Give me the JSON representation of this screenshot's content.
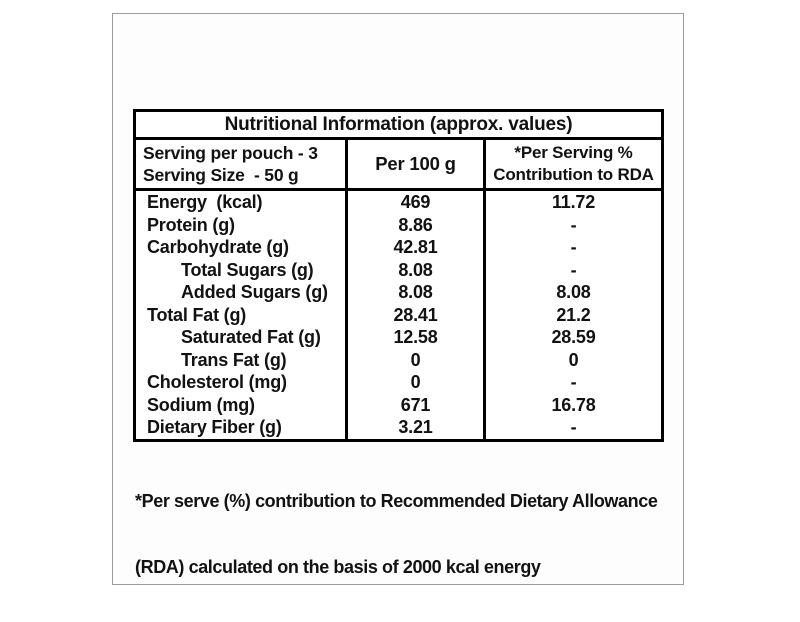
{
  "colors": {
    "table_border": "#000000",
    "frame_border": "#9c9c9c",
    "text": "#121212",
    "background": "#ffffff"
  },
  "table": {
    "title": "Nutritional Information (approx. values)",
    "header": {
      "serving_line1": "Serving per pouch - 3",
      "serving_line2": "Serving Size  - 50 g",
      "per_100g_label": "Per 100 g",
      "rda_line1": "*Per Serving %",
      "rda_line2": "Contribution to RDA"
    },
    "rows": [
      {
        "label": "Energy  (kcal)",
        "indent": false,
        "per_100g": "469",
        "rda": "11.72"
      },
      {
        "label": "Protein (g)",
        "indent": false,
        "per_100g": "8.86",
        "rda": "-"
      },
      {
        "label": "Carbohydrate (g)",
        "indent": false,
        "per_100g": "42.81",
        "rda": "-"
      },
      {
        "label": "Total Sugars (g)",
        "indent": true,
        "per_100g": "8.08",
        "rda": "-"
      },
      {
        "label": "Added Sugars (g)",
        "indent": true,
        "per_100g": "8.08",
        "rda": "8.08"
      },
      {
        "label": "Total Fat (g)",
        "indent": false,
        "per_100g": "28.41",
        "rda": "21.2"
      },
      {
        "label": "Saturated Fat (g)",
        "indent": true,
        "per_100g": "12.58",
        "rda": "28.59"
      },
      {
        "label": "Trans Fat (g)",
        "indent": true,
        "per_100g": "0",
        "rda": "0"
      },
      {
        "label": "Cholesterol (mg)",
        "indent": false,
        "per_100g": "0",
        "rda": "-"
      },
      {
        "label": "Sodium (mg)",
        "indent": false,
        "per_100g": "671",
        "rda": "16.78"
      },
      {
        "label": "Dietary Fiber (g)",
        "indent": false,
        "per_100g": "3.21",
        "rda": "-"
      }
    ],
    "footnote_line1": "*Per serve (%) contribution to Recommended Dietary Allowance",
    "footnote_line2": "(RDA) calculated on the basis of 2000 kcal energy"
  }
}
